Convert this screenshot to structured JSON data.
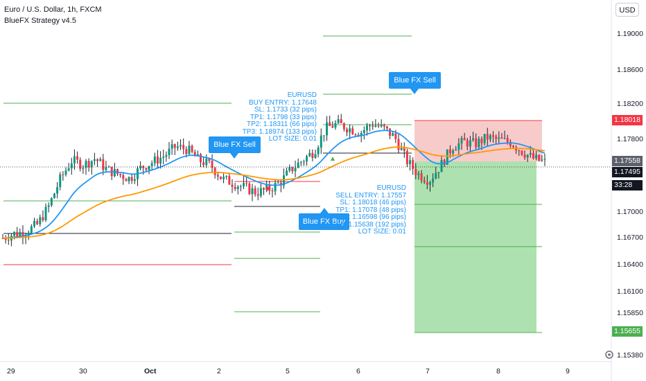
{
  "header": {
    "title": "Euro / U.S. Dollar, 1h, FXCM",
    "indicator": "BlueFX Strategy v4.5"
  },
  "currency_button": "USD",
  "price_axis": {
    "ticks": [
      "1.19000",
      "1.18600",
      "1.18200",
      "1.17800",
      "1.17000",
      "1.16700",
      "1.16400",
      "1.16100",
      "1.15850",
      "1.15380"
    ],
    "tags": {
      "sl": {
        "label": "1.18018",
        "color": "#f23645"
      },
      "entry": {
        "label": "1.17558",
        "color": "#5d606b"
      },
      "last": {
        "label": "1.17495",
        "color": "#131722"
      },
      "countdown": {
        "label": "33:28",
        "color": "#131722"
      },
      "tp": {
        "label": "1.15655",
        "color": "#089981"
      }
    }
  },
  "time_axis": {
    "ticks": [
      "29",
      "30",
      "Oct",
      "2",
      "5",
      "6",
      "7",
      "8",
      "9"
    ]
  },
  "callouts": {
    "sell1": "Blue FX Sell",
    "sell2": "Blue FX Sell",
    "buy": "Blue FX Buy"
  },
  "buy_info": {
    "lines": [
      "EURUSD",
      "BUY ENTRY: 1.17648",
      "SL: 1.1733 (32 pips)",
      "TP1: 1.1798 (33 pips)",
      "TP2: 1.18311 (66 pips)",
      "TP3: 1.18974 (133 pips)",
      "LOT SIZE: 0.01"
    ]
  },
  "sell_info": {
    "lines": [
      "EURUSD",
      "SELL ENTRY: 1.17557",
      "SL: 1.18018 (46 pips)",
      "TP1: 1.17078 (48 pips)",
      "TP2: 1.16598 (96 pips)",
      "TP3: 1.15638 (192 pips)",
      "LOT SIZE: 0.01"
    ]
  },
  "colors": {
    "bull": "#089981",
    "bear": "#f23645",
    "candle": "#1e222d",
    "ema_fast": "#2196f3",
    "ema_slow": "#ff9800",
    "tp_line": "#4caf50",
    "sl_line": "#f23645",
    "profit_zone": "#a5dea7",
    "loss_zone": "#f7c5c5"
  },
  "chart_data": {
    "type": "candlestick",
    "symbol": "EURUSD",
    "timeframe": "1h",
    "ylim": [
      1.1528,
      1.1925
    ],
    "x_labels": [
      "29",
      "30",
      "Oct",
      "2",
      "5",
      "6",
      "7",
      "8",
      "9"
    ],
    "close_path": [
      1.1665,
      1.167,
      1.1672,
      1.168,
      1.17,
      1.173,
      1.175,
      1.1745,
      1.1752,
      1.174,
      1.1735,
      1.173,
      1.1742,
      1.1748,
      1.1755,
      1.1765,
      1.1762,
      1.175,
      1.1745,
      1.173,
      1.1725,
      1.172,
      1.1715,
      1.1718,
      1.1725,
      1.174,
      1.175,
      1.176,
      1.1785,
      1.179,
      1.1785,
      1.178,
      1.179,
      1.1785,
      1.1775,
      1.175,
      1.1735,
      1.1728,
      1.1745,
      1.1765,
      1.177,
      1.1768,
      1.1775,
      1.1772,
      1.177,
      1.176,
      1.1752,
      1.1748
    ],
    "last_price": 1.17495
  }
}
